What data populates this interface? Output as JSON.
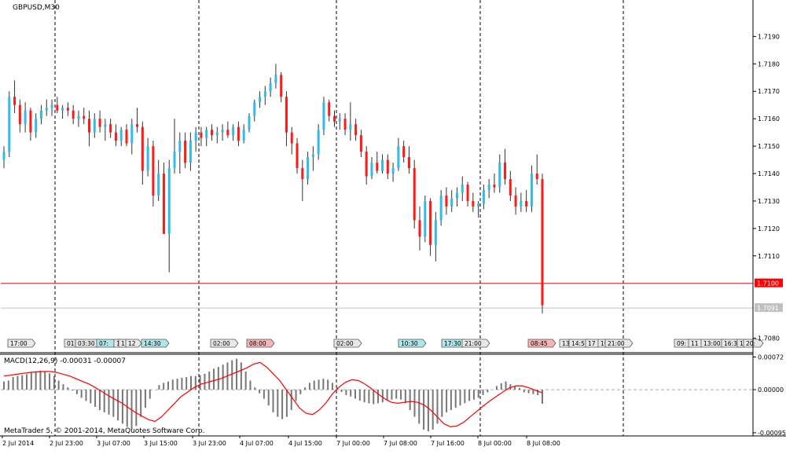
{
  "window": {
    "symbol_label": "GBPUSD,M30",
    "copyright": "MetaTrader 5, © 2001-2014, MetaQuotes Software Corp."
  },
  "colors": {
    "bull": "#33bbe8",
    "bear": "#ff1a1a",
    "wick": "#333333",
    "macd_bar": "#777777",
    "signal": "#ff0000",
    "level_line": "#ff0000",
    "bid_line": "#c0c0c0",
    "grid_separator": "#000000"
  },
  "chart_data": [
    {
      "type": "candlestick",
      "title": "GBPUSD,M30",
      "ylim": [
        1.7075,
        1.7203
      ],
      "y_ticks": [
        "1.7190",
        "1.7180",
        "1.7170",
        "1.7160",
        "1.7150",
        "1.7140",
        "1.7130",
        "1.7120",
        "1.7110",
        "1.7100",
        "1.7091",
        "1.7080"
      ],
      "x_ticks": [
        "2 Jul 2014",
        "2 Jul 23:00",
        "3 Jul 07:00",
        "3 Jul 15:00",
        "3 Jul 23:00",
        "4 Jul 07:00",
        "4 Jul 15:00",
        "7 Jul 00:00",
        "7 Jul 08:00",
        "7 Jul 16:00",
        "8 Jul 00:00",
        "8 Jul 08:00"
      ],
      "price_labels": [
        {
          "value": 1.71,
          "text": "1.7100",
          "style": "level"
        },
        {
          "value": 1.7091,
          "text": "1.7091",
          "style": "bid"
        }
      ],
      "event_markers": [
        {
          "text": "17:00",
          "color": "gray"
        },
        {
          "text": "01:",
          "color": "gray"
        },
        {
          "text": "03:30",
          "color": "gray"
        },
        {
          "text": "07:",
          "color": "teal"
        },
        {
          "text": "1",
          "color": "gray"
        },
        {
          "text": "1",
          "color": "gray"
        },
        {
          "text": "12",
          "color": "gray"
        },
        {
          "text": "14:30",
          "color": "teal"
        },
        {
          "text": "02:00",
          "color": "gray"
        },
        {
          "text": "08:00",
          "color": "red"
        },
        {
          "text": "02:00",
          "color": "gray"
        },
        {
          "text": "10:30",
          "color": "teal"
        },
        {
          "text": "17:30",
          "color": "teal"
        },
        {
          "text": "21:00",
          "color": "gray"
        },
        {
          "text": "08:45",
          "color": "red"
        },
        {
          "text": "13",
          "color": "gray"
        },
        {
          "text": "14:5",
          "color": "gray"
        },
        {
          "text": "17",
          "color": "gray"
        },
        {
          "text": "19",
          "color": "gray"
        },
        {
          "text": "21:00",
          "color": "gray"
        },
        {
          "text": "09:",
          "color": "gray"
        },
        {
          "text": "11",
          "color": "gray"
        },
        {
          "text": "13:00",
          "color": "gray"
        },
        {
          "text": "16:3",
          "color": "gray"
        },
        {
          "text": "1",
          "color": "gray"
        },
        {
          "text": "20:",
          "color": "gray"
        }
      ],
      "ohlc": [
        [
          1.7145,
          1.715,
          1.7142,
          1.7148
        ],
        [
          1.7148,
          1.717,
          1.7146,
          1.7168
        ],
        [
          1.7168,
          1.7174,
          1.7162,
          1.7165
        ],
        [
          1.7165,
          1.7167,
          1.7155,
          1.7158
        ],
        [
          1.7158,
          1.7166,
          1.7155,
          1.7163
        ],
        [
          1.7163,
          1.7164,
          1.7152,
          1.7155
        ],
        [
          1.7155,
          1.7162,
          1.7153,
          1.716
        ],
        [
          1.716,
          1.7165,
          1.7158,
          1.7163
        ],
        [
          1.7163,
          1.7167,
          1.7161,
          1.7164
        ],
        [
          1.7164,
          1.7167,
          1.7161,
          1.7165
        ],
        [
          1.7165,
          1.7168,
          1.7162,
          1.7163
        ],
        [
          1.7163,
          1.7165,
          1.716,
          1.7164
        ],
        [
          1.7164,
          1.7166,
          1.7161,
          1.7163
        ],
        [
          1.7163,
          1.7165,
          1.7158,
          1.716
        ],
        [
          1.716,
          1.7163,
          1.7157,
          1.7161
        ],
        [
          1.7161,
          1.7164,
          1.7158,
          1.716
        ],
        [
          1.716,
          1.7163,
          1.715,
          1.7155
        ],
        [
          1.7155,
          1.7162,
          1.7153,
          1.716
        ],
        [
          1.716,
          1.7163,
          1.7155,
          1.7157
        ],
        [
          1.7157,
          1.716,
          1.7152,
          1.7158
        ],
        [
          1.7158,
          1.716,
          1.7153,
          1.7155
        ],
        [
          1.7155,
          1.7158,
          1.715,
          1.7152
        ],
        [
          1.7152,
          1.7157,
          1.715,
          1.7156
        ],
        [
          1.7156,
          1.7158,
          1.715,
          1.7151
        ],
        [
          1.7151,
          1.716,
          1.7147,
          1.7158
        ],
        [
          1.7158,
          1.7164,
          1.7155,
          1.7157
        ],
        [
          1.7157,
          1.7159,
          1.7136,
          1.7141
        ],
        [
          1.7141,
          1.7153,
          1.7139,
          1.715
        ],
        [
          1.715,
          1.7152,
          1.7128,
          1.7132
        ],
        [
          1.7132,
          1.7145,
          1.713,
          1.714
        ],
        [
          1.714,
          1.7144,
          1.7118,
          1.7118
        ],
        [
          1.7118,
          1.7145,
          1.7104,
          1.7142
        ],
        [
          1.7142,
          1.716,
          1.714,
          1.7148
        ],
        [
          1.7148,
          1.7155,
          1.714,
          1.7152
        ],
        [
          1.7152,
          1.7155,
          1.7142,
          1.7144
        ],
        [
          1.7144,
          1.7155,
          1.7141,
          1.7152
        ],
        [
          1.7152,
          1.7157,
          1.7148,
          1.7155
        ],
        [
          1.7155,
          1.7157,
          1.715,
          1.7153
        ],
        [
          1.7153,
          1.7157,
          1.715,
          1.7156
        ],
        [
          1.7156,
          1.7158,
          1.7152,
          1.7154
        ],
        [
          1.7154,
          1.7157,
          1.7151,
          1.7155
        ],
        [
          1.7155,
          1.7158,
          1.7152,
          1.7156
        ],
        [
          1.7156,
          1.7159,
          1.7153,
          1.7154
        ],
        [
          1.7154,
          1.7158,
          1.7152,
          1.7157
        ],
        [
          1.7157,
          1.7159,
          1.715,
          1.7152
        ],
        [
          1.7152,
          1.7158,
          1.7151,
          1.7156
        ],
        [
          1.7156,
          1.7162,
          1.7155,
          1.7161
        ],
        [
          1.7161,
          1.7167,
          1.7159,
          1.7166
        ],
        [
          1.7166,
          1.717,
          1.7164,
          1.7168
        ],
        [
          1.7168,
          1.7172,
          1.7165,
          1.717
        ],
        [
          1.717,
          1.7175,
          1.7168,
          1.7173
        ],
        [
          1.7173,
          1.718,
          1.7171,
          1.7176
        ],
        [
          1.7176,
          1.7177,
          1.7166,
          1.7168
        ],
        [
          1.7168,
          1.717,
          1.715,
          1.7155
        ],
        [
          1.7155,
          1.7157,
          1.7147,
          1.7151
        ],
        [
          1.7151,
          1.7153,
          1.714,
          1.7142
        ],
        [
          1.7142,
          1.7145,
          1.713,
          1.7138
        ],
        [
          1.7138,
          1.7148,
          1.7136,
          1.7146
        ],
        [
          1.7146,
          1.715,
          1.7141,
          1.7147
        ],
        [
          1.7147,
          1.7158,
          1.7145,
          1.7156
        ],
        [
          1.7156,
          1.7168,
          1.7154,
          1.7166
        ],
        [
          1.7166,
          1.7167,
          1.7159,
          1.7161
        ],
        [
          1.7161,
          1.7163,
          1.7157,
          1.7159
        ],
        [
          1.7159,
          1.7162,
          1.7156,
          1.716
        ],
        [
          1.716,
          1.7162,
          1.7154,
          1.7156
        ],
        [
          1.7156,
          1.7166,
          1.7152,
          1.7158
        ],
        [
          1.7158,
          1.716,
          1.7152,
          1.7154
        ],
        [
          1.7154,
          1.7156,
          1.7146,
          1.7148
        ],
        [
          1.7148,
          1.715,
          1.7136,
          1.7139
        ],
        [
          1.7139,
          1.7146,
          1.7138,
          1.7144
        ],
        [
          1.7144,
          1.7148,
          1.714,
          1.7141
        ],
        [
          1.7141,
          1.7147,
          1.714,
          1.7145
        ],
        [
          1.7145,
          1.7147,
          1.7138,
          1.714
        ],
        [
          1.714,
          1.7144,
          1.7137,
          1.7142
        ],
        [
          1.7142,
          1.7153,
          1.7141,
          1.715
        ],
        [
          1.715,
          1.7152,
          1.7144,
          1.7146
        ],
        [
          1.7146,
          1.715,
          1.714,
          1.7142
        ],
        [
          1.7142,
          1.7145,
          1.712,
          1.7123
        ],
        [
          1.7123,
          1.7128,
          1.7112,
          1.7117
        ],
        [
          1.7117,
          1.7132,
          1.7115,
          1.713
        ],
        [
          1.713,
          1.7131,
          1.711,
          1.7114
        ],
        [
          1.7114,
          1.7126,
          1.7108,
          1.7123
        ],
        [
          1.7123,
          1.7134,
          1.7121,
          1.7132
        ],
        [
          1.7132,
          1.7135,
          1.7125,
          1.7128
        ],
        [
          1.7128,
          1.7134,
          1.7126,
          1.7131
        ],
        [
          1.7131,
          1.7135,
          1.7128,
          1.7133
        ],
        [
          1.7133,
          1.7139,
          1.713,
          1.7136
        ],
        [
          1.7136,
          1.7137,
          1.7128,
          1.713
        ],
        [
          1.713,
          1.7133,
          1.7126,
          1.7128
        ],
        [
          1.7128,
          1.713,
          1.7124,
          1.7129
        ],
        [
          1.7129,
          1.7136,
          1.7127,
          1.7134
        ],
        [
          1.7134,
          1.7138,
          1.7131,
          1.7136
        ],
        [
          1.7136,
          1.714,
          1.7133,
          1.7135
        ],
        [
          1.7135,
          1.7147,
          1.7133,
          1.7144
        ],
        [
          1.7144,
          1.7149,
          1.7136,
          1.7138
        ],
        [
          1.7138,
          1.7141,
          1.713,
          1.7132
        ],
        [
          1.7132,
          1.7135,
          1.7125,
          1.7128
        ],
        [
          1.7128,
          1.7133,
          1.7126,
          1.713
        ],
        [
          1.713,
          1.7134,
          1.7126,
          1.7128
        ],
        [
          1.7128,
          1.7143,
          1.7126,
          1.714
        ],
        [
          1.714,
          1.7147,
          1.7136,
          1.7138
        ],
        [
          1.7138,
          1.714,
          1.7089,
          1.7092
        ]
      ]
    },
    {
      "type": "bar",
      "title": "MACD(12,26,9) -0.00031 -0.00007",
      "indicator": "MACD",
      "parameters": [
        12,
        26,
        9
      ],
      "current_values": {
        "macd": -0.00031,
        "signal": -7e-05
      },
      "ylim": [
        -0.00102,
        0.00078
      ],
      "y_ticks": [
        "0.00072",
        "0.00000",
        "-0.00095"
      ],
      "zero_line": "dashed",
      "histogram": [
        0.00018,
        0.0002,
        0.00028,
        0.0003,
        0.00032,
        0.00034,
        0.00038,
        0.0004,
        0.00042,
        0.0004,
        0.00036,
        0.0003,
        0.0002,
        0.00012,
        5e-05,
        -2e-05,
        -0.0001,
        -0.00018,
        -0.00025,
        -0.0003,
        -0.00038,
        -0.00045,
        -0.0005,
        -0.00055,
        -0.0006,
        -0.00068,
        -0.00075,
        -0.00082,
        -0.00088,
        -0.0008,
        -0.0006,
        -0.0004,
        -0.0002,
        0.0,
        0.0001,
        0.00015,
        0.00018,
        0.00022,
        0.00024,
        0.00026,
        0.00028,
        0.0003,
        0.0003,
        0.00032,
        0.00035,
        0.0004,
        0.00046,
        0.0005,
        0.00055,
        0.0006,
        0.00065,
        0.00068,
        0.0006,
        0.0004,
        0.0002,
        5e-05,
        -8e-05,
        -0.0002,
        -0.00035,
        -0.0005,
        -0.0006,
        -0.00065,
        -0.0006,
        -0.00045,
        -0.00025,
        -0.0001,
        5e-05,
        0.00015,
        0.0002,
        0.00022,
        0.00024,
        0.00022,
        0.00015,
        5e-05,
        -5e-05,
        -0.00012,
        -0.00015,
        -0.0002,
        -0.00024,
        -0.00028,
        -0.0003,
        -0.00032,
        -0.0003,
        -0.00028,
        -0.00025,
        -0.00022,
        -0.0002,
        -0.00022,
        -0.0003,
        -0.00045,
        -0.0006,
        -0.00075,
        -0.00088,
        -0.00092,
        -0.00088,
        -0.00075,
        -0.0006,
        -0.0005,
        -0.00045,
        -0.0004,
        -0.00035,
        -0.0003,
        -0.00025,
        -0.00022,
        -0.00018,
        -0.00012,
        -6e-05,
        0.0,
        8e-05,
        0.00014,
        0.00018,
        0.00012,
        8e-05,
        4e-05,
        -6e-05,
        -8e-05,
        -0.0001,
        -0.00012,
        -0.00031
      ],
      "signal": [
        0.0003,
        0.00032,
        0.00034,
        0.00036,
        0.00038,
        0.00039,
        0.0004,
        0.0004,
        0.00038,
        0.00034,
        0.0003,
        0.00024,
        0.00018,
        0.00012,
        4e-05,
        -5e-05,
        -0.00014,
        -0.00022,
        -0.0003,
        -0.0004,
        -0.0005,
        -0.00058,
        -0.00066,
        -0.0007,
        -0.0006,
        -0.00045,
        -0.0003,
        -0.00015,
        -5e-05,
        5e-05,
        0.00012,
        0.00016,
        0.0002,
        0.00024,
        0.0003,
        0.00036,
        0.00042,
        0.00048,
        0.00056,
        0.0006,
        0.0005,
        0.00035,
        0.0002,
        0.0,
        -0.0002,
        -0.0004,
        -0.00052,
        -0.00055,
        -0.00045,
        -0.0003,
        -0.0001,
        5e-05,
        0.00016,
        0.00022,
        0.0002,
        0.00012,
        2e-05,
        -0.0001,
        -0.0002,
        -0.00028,
        -0.0003,
        -0.00028,
        -0.00026,
        -0.00028,
        -0.00034,
        -0.00045,
        -0.0006,
        -0.00075,
        -0.00082,
        -0.0008,
        -0.00072,
        -0.0006,
        -0.00048,
        -0.00036,
        -0.00025,
        -0.00015,
        -5e-05,
        4e-05,
        8e-05,
        8e-05,
        4e-05,
        -2e-05,
        -7e-05
      ]
    }
  ]
}
